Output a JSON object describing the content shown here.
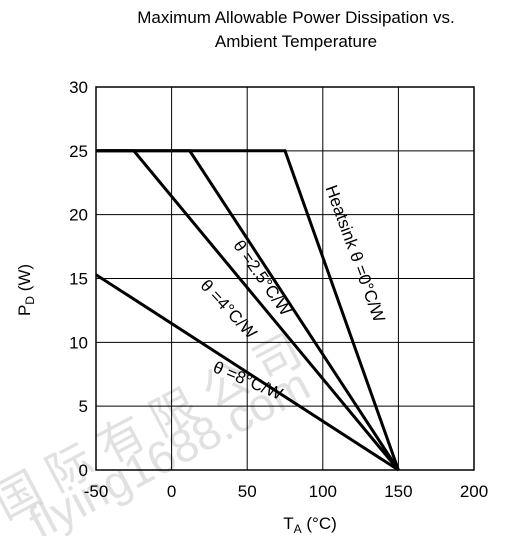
{
  "chart_data": {
    "type": "line",
    "title_line1": "Maximum Allowable Power Dissipation vs.",
    "title_line2": "Ambient Temperature",
    "xlabel_main": "T",
    "xlabel_sub": "A",
    "xlabel_unit": " (°C)",
    "ylabel_main": "P",
    "ylabel_sub": "D",
    "ylabel_unit": " (W)",
    "xlim": [
      -50,
      200
    ],
    "ylim": [
      0,
      30
    ],
    "xticks": [
      -50,
      0,
      50,
      100,
      150,
      200
    ],
    "yticks": [
      0,
      5,
      10,
      15,
      20,
      25,
      30
    ],
    "grid": true,
    "series": [
      {
        "name": "Heatsink θ =0°C/W",
        "x": [
          -50,
          75,
          150
        ],
        "y": [
          25,
          25,
          0
        ]
      },
      {
        "name": "θ =2.5°C/W",
        "x": [
          -50,
          12,
          150
        ],
        "y": [
          25,
          25,
          0
        ]
      },
      {
        "name": "θ =4°C/W",
        "x": [
          -50,
          -25,
          150
        ],
        "y": [
          25,
          25,
          0
        ]
      },
      {
        "name": "θ =8°C/W",
        "x": [
          -50,
          150
        ],
        "y": [
          15.3,
          0
        ]
      }
    ],
    "annotations": [
      {
        "text": "Heatsink θ =0°C/W",
        "x": 118,
        "y": 16.8,
        "angle": 70
      },
      {
        "text": "θ =2.5°C/W",
        "x": 57,
        "y": 14.8,
        "angle": 55
      },
      {
        "text": "θ =4°C/W",
        "x": 35,
        "y": 12.3,
        "angle": 47
      },
      {
        "text": "θ =8°C/W",
        "x": 49,
        "y": 6.6,
        "angle": 23
      }
    ]
  },
  "watermark": {
    "line1": "国 际 有 限 公 司",
    "line2": "flying1688.com"
  }
}
